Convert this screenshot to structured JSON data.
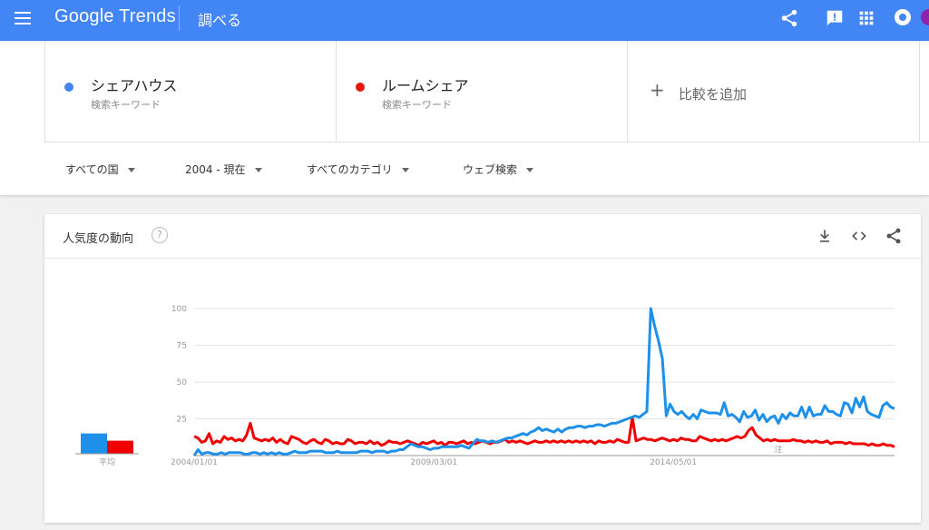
{
  "header": {
    "logo_google": "Google",
    "logo_trends": "Trends",
    "explore_label": "調べる"
  },
  "terms": [
    {
      "name": "シェアハウス",
      "sub": "検索キーワード",
      "color": "#4285f4"
    },
    {
      "name": "ルームシェア",
      "sub": "検索キーワード",
      "color": "#e8170d"
    }
  ],
  "add_compare": {
    "plus": "+",
    "label": "比較を追加"
  },
  "filters": {
    "region": "すべての国",
    "time": "2004 - 現在",
    "category": "すべてのカテゴリ",
    "search_type": "ウェブ検索"
  },
  "card": {
    "title": "人気度の動向",
    "help": "?"
  },
  "chart_data": {
    "type": "line",
    "ylim": [
      0,
      100
    ],
    "yticks": [
      "100",
      "75",
      "50",
      "25"
    ],
    "xticks": [
      "2004/01/01",
      "2009/03/01",
      "2014/05/01"
    ],
    "average_label": "平均",
    "note_label": "注",
    "series": [
      {
        "name": "シェアハウス",
        "color": "#1e90ea",
        "average": 14,
        "values": [
          0,
          4,
          1,
          2,
          2,
          1,
          1,
          2,
          1,
          2,
          2,
          2,
          2,
          1,
          1,
          2,
          2,
          1,
          2,
          1,
          2,
          1,
          2,
          1,
          1,
          2,
          3,
          2,
          2,
          2,
          3,
          3,
          3,
          3,
          2,
          2,
          2,
          3,
          2,
          2,
          2,
          2,
          2,
          3,
          3,
          3,
          2,
          3,
          3,
          3,
          2,
          3,
          3,
          4,
          4,
          6,
          8,
          7,
          6,
          6,
          5,
          4,
          5,
          5,
          6,
          6,
          6,
          6,
          6,
          7,
          6,
          5,
          8,
          11,
          10,
          10,
          9,
          10,
          9,
          10,
          11,
          12,
          12,
          13,
          14,
          15,
          14,
          16,
          17,
          19,
          17,
          18,
          17,
          16,
          18,
          16,
          18,
          19,
          19,
          20,
          20,
          19,
          20,
          20,
          21,
          21,
          20,
          21,
          22,
          22,
          23,
          24,
          25,
          26,
          27,
          26,
          28,
          30,
          100,
          88,
          78,
          66,
          27,
          35,
          30,
          28,
          30,
          27,
          25,
          28,
          25,
          31,
          30,
          29,
          29,
          29,
          28,
          36,
          27,
          28,
          26,
          23,
          30,
          26,
          27,
          31,
          24,
          28,
          23,
          26,
          27,
          22,
          28,
          25,
          29,
          27,
          27,
          33,
          26,
          33,
          27,
          28,
          28,
          34,
          30,
          30,
          28,
          27,
          36,
          35,
          29,
          39,
          33,
          40,
          30,
          28,
          27,
          26,
          34,
          36,
          33,
          32
        ]
      },
      {
        "name": "ルームシェア",
        "color": "#f00000",
        "average": 9,
        "values": [
          13,
          12,
          9,
          10,
          15,
          8,
          10,
          9,
          13,
          11,
          12,
          10,
          11,
          10,
          14,
          22,
          12,
          11,
          10,
          11,
          10,
          12,
          9,
          11,
          9,
          8,
          13,
          12,
          11,
          9,
          8,
          10,
          11,
          9,
          8,
          11,
          10,
          8,
          9,
          8,
          8,
          11,
          10,
          8,
          9,
          9,
          8,
          10,
          8,
          9,
          7,
          8,
          10,
          9,
          9,
          8,
          9,
          10,
          9,
          8,
          7,
          9,
          8,
          9,
          10,
          8,
          9,
          7,
          9,
          9,
          8,
          9,
          10,
          8,
          9,
          8,
          9,
          10,
          9,
          8,
          9,
          9,
          10,
          11,
          9,
          10,
          9,
          10,
          9,
          8,
          9,
          10,
          9,
          9,
          10,
          9,
          10,
          9,
          10,
          9,
          10,
          9,
          10,
          9,
          10,
          9,
          10,
          8,
          10,
          9,
          9,
          10,
          9,
          11,
          10,
          9,
          9,
          26,
          10,
          11,
          12,
          11,
          11,
          10,
          11,
          12,
          11,
          10,
          11,
          10,
          12,
          11,
          11,
          10,
          10,
          13,
          12,
          11,
          10,
          11,
          10,
          11,
          10,
          11,
          12,
          13,
          12,
          13,
          17,
          19,
          14,
          12,
          10,
          11,
          10,
          11,
          10,
          10,
          10,
          10,
          11,
          10,
          10,
          9,
          10,
          9,
          10,
          9,
          9,
          10,
          8,
          9,
          9,
          9,
          8,
          9,
          8,
          8,
          8,
          8,
          7,
          8,
          7,
          7,
          8,
          7,
          7,
          6
        ]
      }
    ]
  }
}
